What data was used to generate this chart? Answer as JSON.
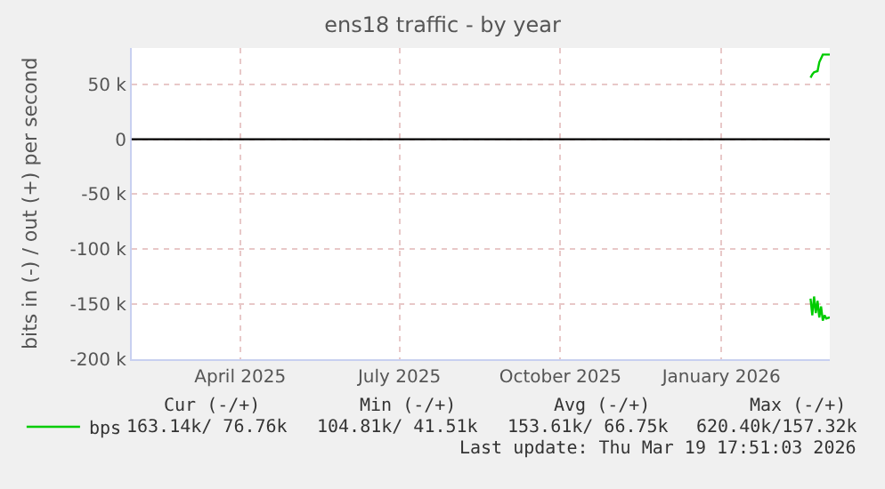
{
  "chart_data": {
    "type": "line",
    "title": "ens18 traffic - by year",
    "ylabel": "bits in (-) / out (+) per second",
    "series": [
      {
        "name": "bps",
        "color": "#00cc00",
        "x": [
          "2026-03-08",
          "2026-03-09",
          "2026-03-10",
          "2026-03-12",
          "2026-03-13",
          "2026-03-15",
          "2026-03-19"
        ],
        "values": [
          56000,
          59000,
          61000,
          62000,
          70000,
          77000,
          77000
        ]
      },
      {
        "color": "#00cc00",
        "x": [
          "2026-03-08",
          "2026-03-09",
          "2026-03-10",
          "2026-03-11",
          "2026-03-12",
          "2026-03-13",
          "2026-03-14",
          "2026-03-15",
          "2026-03-16",
          "2026-03-17",
          "2026-03-19"
        ],
        "values": [
          -145000,
          -160000,
          -143000,
          -158000,
          -147000,
          -162000,
          -152000,
          -165000,
          -160000,
          -163000,
          -162000
        ]
      }
    ],
    "xlim": [
      "2025-02-13",
      "2026-03-19"
    ],
    "xticks": [
      {
        "value": "2025-04-16",
        "label": "April 2025"
      },
      {
        "value": "2025-07-16",
        "label": "July 2025"
      },
      {
        "value": "2025-10-16",
        "label": "October 2025"
      },
      {
        "value": "2026-01-16",
        "label": "January 2026"
      }
    ],
    "ylim": [
      -200000,
      83000
    ],
    "yticks": [
      {
        "value": -200000,
        "label": "-200 k"
      },
      {
        "value": -150000,
        "label": "-150 k"
      },
      {
        "value": -100000,
        "label": "-100 k"
      },
      {
        "value": -50000,
        "label": "-50 k"
      },
      {
        "value": 0,
        "label": "0"
      },
      {
        "value": 50000,
        "label": "50 k"
      }
    ],
    "ref_lines": [
      {
        "axis": "y",
        "value": 0,
        "color": "#000000"
      }
    ],
    "grid": true,
    "legend": "bottom left",
    "marker": "none",
    "line_style": "solid",
    "annotations": [
      "Cur (-/+)",
      "Min (-/+)",
      "Avg (-/+)",
      "Max (-/+)",
      "163.14k/ 76.76k",
      "104.81k/ 41.51k",
      "153.61k/ 66.75k",
      "620.40k/157.32k",
      "Last update: Thu Mar 19 17:51:03 2026"
    ]
  }
}
